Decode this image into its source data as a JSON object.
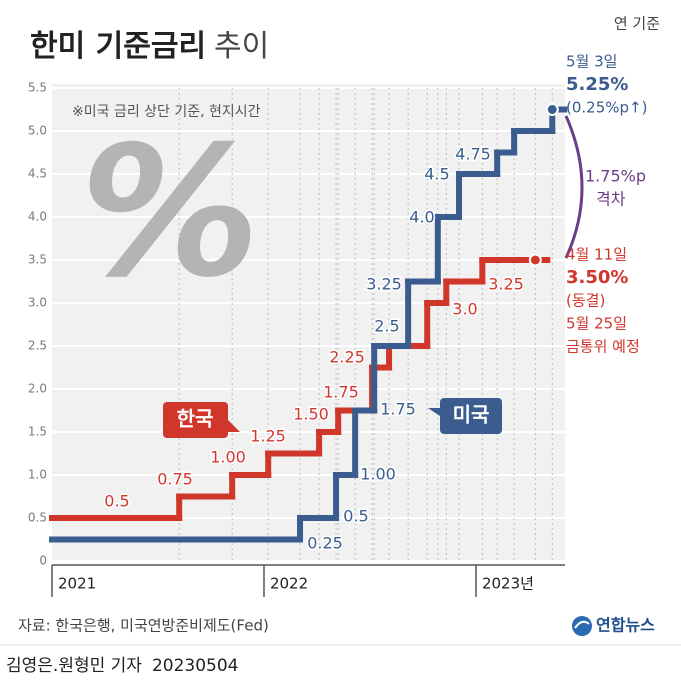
{
  "chart_data": {
    "type": "line",
    "step": "post",
    "title": "한미 기준금리",
    "title_suffix": "추이",
    "unit": "연 기준",
    "note": "※미국 금리 상단 기준, 현지시간",
    "watermark": "%",
    "xlim": [
      2021,
      2023.42
    ],
    "xticks": [
      2021,
      2022,
      {
        "value": 2023,
        "label": "2023년"
      }
    ],
    "ylim": [
      0,
      5.5
    ],
    "yticks": [
      0,
      0.5,
      {
        "value": 1,
        "label": "1.0"
      },
      1.5,
      {
        "value": 2,
        "label": "2.0"
      },
      2.5,
      {
        "value": 3,
        "label": "3.0"
      },
      3.5,
      {
        "value": 4,
        "label": "4.0"
      },
      4.5,
      {
        "value": 5,
        "label": "5.0"
      },
      5.5
    ],
    "grid": true,
    "series": [
      {
        "name": "한국",
        "color": "#d1362b",
        "x": [
          2021.0,
          2021.6,
          2021.85,
          2022.02,
          2022.26,
          2022.35,
          2022.51,
          2022.59,
          2022.77,
          2022.86,
          2023.03,
          2023.28
        ],
        "values": [
          0.5,
          0.75,
          1.0,
          1.25,
          1.5,
          1.75,
          2.25,
          2.5,
          3.0,
          3.25,
          3.5,
          3.5
        ],
        "value_labels": [
          "0.5",
          "0.75",
          "1.00",
          "1.25",
          "1.50",
          "1.75",
          "2.25",
          null,
          "3.0",
          "3.25",
          null,
          null
        ]
      },
      {
        "name": "미국",
        "color": "#3a5c8e",
        "x": [
          2021.0,
          2022.17,
          2022.34,
          2022.43,
          2022.52,
          2022.68,
          2022.82,
          2022.92,
          2023.1,
          2023.18,
          2023.36
        ],
        "values": [
          0.25,
          0.5,
          1.0,
          1.75,
          2.5,
          3.25,
          4.0,
          4.5,
          4.75,
          5.0,
          5.25
        ],
        "value_labels": [
          "0.25",
          "0.5",
          "1.00",
          "1.75",
          "2.5",
          "3.25",
          "4.0",
          "4.5",
          "4.75",
          null,
          null
        ]
      }
    ],
    "us_note": [
      "5월 3일",
      "5.25%",
      "(0.25%p↑)"
    ],
    "korea_note": [
      "4월 11일",
      "3.50%",
      "(동결)",
      "5월 25일",
      "금통위 예정"
    ],
    "gap_note": [
      "1.75%p",
      "격차"
    ]
  },
  "source": "자료: 한국은행, 미국연방준비제도(Fed)",
  "logo": "연합뉴스",
  "credit": "김영은.원형민 기자",
  "date": "20230504"
}
